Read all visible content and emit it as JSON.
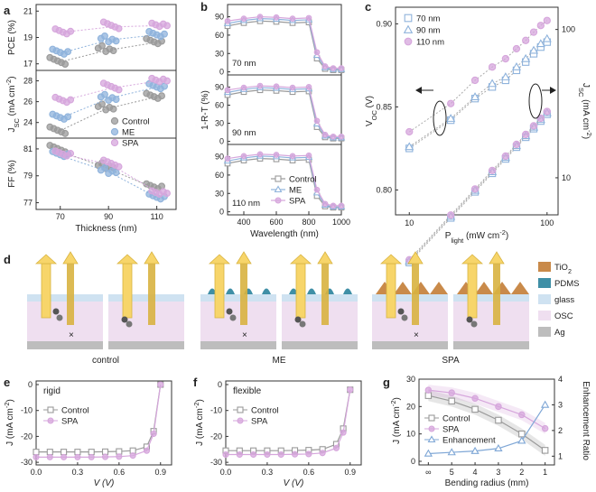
{
  "panels": {
    "a": {
      "label": "a",
      "pce": {
        "ylabel": "PCE (%)",
        "yticks": [
          "17",
          "19",
          "21"
        ]
      },
      "jsc": {
        "ylabel": "J<sub>SC</sub> (mA cm<sup>-2</sup>)",
        "yticks": [
          "24",
          "26",
          "28"
        ]
      },
      "ff": {
        "ylabel": "FF (%)",
        "yticks": [
          "77",
          "79",
          "81"
        ]
      },
      "xticks": [
        "70",
        "90",
        "110"
      ],
      "xlabel": "Thickness (nm)",
      "legend": [
        "Control",
        "ME",
        "SPA"
      ]
    },
    "b": {
      "label": "b",
      "ylabel": "1-R-T (%)",
      "xlabel": "Wavelength (nm)",
      "xticks": [
        "400",
        "600",
        "800",
        "1000"
      ],
      "yticks": [
        "0",
        "30",
        "60",
        "90"
      ],
      "tags": [
        "70 nm",
        "90 nm",
        "110 nm"
      ],
      "legend": [
        "Control",
        "ME",
        "SPA"
      ]
    },
    "c": {
      "label": "c",
      "ylabel_left": "V<sub>OC</sub> (V)",
      "ylabel_right": "J<sub>SC</sub> (mA cm<sup>-2</sup>)",
      "xlabel": "P<sub>light</sub> (mW cm<sup>-2</sup>)",
      "yticks_left": [
        "0.80",
        "0.85",
        "0.90"
      ],
      "yticks_right": [
        "10",
        "100"
      ],
      "xticks": [
        "10",
        "100"
      ],
      "legend": [
        "70 nm",
        "90 nm",
        "110 nm"
      ]
    },
    "d": {
      "label": "d",
      "captions": [
        "control",
        "ME",
        "SPA"
      ],
      "legend": [
        "TiO<sub>2</sub>",
        "PDMS",
        "glass",
        "OSC",
        "Ag"
      ]
    },
    "e": {
      "label": "e",
      "tag": "rigid",
      "ylabel": "J (mA cm<sup>-2</sup>)",
      "xlabel": "V (V)",
      "xticks": [
        "0.0",
        "0.3",
        "0.6",
        "0.9"
      ],
      "yticks": [
        "0",
        "-10",
        "-20",
        "-30"
      ],
      "legend": [
        "Control",
        "SPA"
      ]
    },
    "f": {
      "label": "f",
      "tag": "flexible",
      "ylabel": "J (mA cm<sup>-2</sup>)",
      "xlabel": "V (V)",
      "xticks": [
        "0.0",
        "0.3",
        "0.6",
        "0.9"
      ],
      "yticks": [
        "0",
        "-10",
        "-20",
        "-30"
      ],
      "legend": [
        "Control",
        "SPA"
      ]
    },
    "g": {
      "label": "g",
      "ylabel_left": "J (mA cm<sup>-2</sup>)",
      "ylabel_right": "Enhancement Ratio",
      "xlabel": "Bending radius (mm)",
      "xticks": [
        "∞",
        "5",
        "4",
        "3",
        "2",
        "1"
      ],
      "yticks_left": [
        "0",
        "10",
        "20",
        "30"
      ],
      "yticks_right": [
        "1",
        "2",
        "3",
        "4"
      ],
      "legend": [
        "Control",
        "SPA",
        "Enhancement"
      ]
    }
  },
  "colors": {
    "control": "#9a9a9a",
    "me": "#8fb3dc",
    "spa": "#d6a6dc",
    "arrow": "#f7d56a",
    "tio2": "#c98a4a",
    "pdms": "#3f8fa6",
    "glass": "#cfe2f1",
    "osc": "#efdff0",
    "ag": "#bdbdbd"
  },
  "chart_data": [
    {
      "type": "scatter",
      "title": "PCE vs thickness",
      "x": [
        70,
        90,
        110
      ],
      "series": [
        {
          "name": "Control",
          "values": [
            17.1,
            18.0,
            18.6
          ]
        },
        {
          "name": "ME",
          "values": [
            17.8,
            18.8,
            19.2
          ]
        },
        {
          "name": "SPA",
          "values": [
            19.4,
            19.8,
            19.9
          ]
        }
      ]
    },
    {
      "type": "scatter",
      "title": "Jsc vs thickness",
      "x": [
        70,
        90,
        110
      ],
      "series": [
        {
          "name": "Control",
          "values": [
            23.1,
            25.3,
            26.4
          ]
        },
        {
          "name": "ME",
          "values": [
            24.4,
            26.3,
            27.4
          ]
        },
        {
          "name": "SPA",
          "values": [
            26.1,
            27.3,
            28.0
          ]
        }
      ]
    },
    {
      "type": "scatter",
      "title": "FF vs thickness",
      "x": [
        70,
        90,
        110
      ],
      "series": [
        {
          "name": "Control",
          "values": [
            80.9,
            79.6,
            78.1
          ]
        },
        {
          "name": "ME",
          "values": [
            80.5,
            79.3,
            77.4
          ]
        },
        {
          "name": "SPA",
          "values": [
            80.6,
            79.8,
            77.7
          ]
        }
      ]
    },
    {
      "type": "line",
      "title": "1-R-T spectra",
      "x": [
        300,
        400,
        500,
        600,
        700,
        800,
        850,
        900,
        950,
        1000
      ],
      "series": [
        {
          "name": "Control",
          "values": [
            78,
            83,
            86,
            85,
            83,
            84,
            25,
            8,
            6,
            6
          ]
        },
        {
          "name": "ME",
          "values": [
            82,
            87,
            90,
            89,
            87,
            88,
            30,
            10,
            7,
            7
          ]
        },
        {
          "name": "SPA",
          "values": [
            86,
            90,
            93,
            92,
            90,
            91,
            35,
            12,
            9,
            9
          ]
        }
      ]
    },
    {
      "type": "scatter",
      "title": "Voc and Jsc vs light intensity",
      "x": [
        10,
        20,
        30,
        40,
        50,
        60,
        70,
        80,
        90,
        100
      ],
      "series": [
        {
          "name": "70 nm",
          "values": [
            0.825,
            0.842,
            0.855,
            0.862,
            0.866,
            0.872,
            0.877,
            0.882,
            0.886,
            0.889
          ]
        },
        {
          "name": "90 nm",
          "values": [
            0.826,
            0.843,
            0.856,
            0.864,
            0.868,
            0.874,
            0.879,
            0.884,
            0.888,
            0.891
          ]
        },
        {
          "name": "110 nm",
          "values": [
            0.835,
            0.852,
            0.866,
            0.874,
            0.879,
            0.885,
            0.89,
            0.895,
            0.899,
            0.902
          ]
        }
      ]
    },
    {
      "type": "line",
      "title": "J-V rigid",
      "x": [
        0,
        0.1,
        0.2,
        0.3,
        0.4,
        0.5,
        0.6,
        0.7,
        0.8,
        0.85,
        0.9
      ],
      "series": [
        {
          "name": "Control",
          "values": [
            -26,
            -26,
            -26,
            -26,
            -26,
            -25.9,
            -25.8,
            -25.5,
            -24,
            -18,
            0
          ]
        },
        {
          "name": "SPA",
          "values": [
            -28,
            -28,
            -28,
            -28,
            -28,
            -27.9,
            -27.8,
            -27.4,
            -25.5,
            -19,
            0
          ]
        }
      ]
    },
    {
      "type": "line",
      "title": "J-V flexible",
      "x": [
        0,
        0.1,
        0.2,
        0.3,
        0.4,
        0.5,
        0.6,
        0.7,
        0.8,
        0.85,
        0.9
      ],
      "series": [
        {
          "name": "Control",
          "values": [
            -25.5,
            -25.5,
            -25.5,
            -25.5,
            -25.5,
            -25.4,
            -25.3,
            -25,
            -23,
            -17,
            -2
          ]
        },
        {
          "name": "SPA",
          "values": [
            -27,
            -27,
            -27,
            -27,
            -27,
            -26.9,
            -26.8,
            -26.4,
            -24.5,
            -18.5,
            -2
          ]
        }
      ]
    },
    {
      "type": "line",
      "title": "Bending radius",
      "categories": [
        "∞",
        "5",
        "4",
        "3",
        "2",
        "1"
      ],
      "series": [
        {
          "name": "Control",
          "values": [
            24,
            22,
            19,
            15,
            10,
            4
          ]
        },
        {
          "name": "SPA",
          "values": [
            26,
            25,
            23,
            20,
            17,
            12
          ]
        },
        {
          "name": "Enhancement",
          "values": [
            1.1,
            1.15,
            1.2,
            1.3,
            1.6,
            3.0
          ]
        }
      ]
    }
  ]
}
